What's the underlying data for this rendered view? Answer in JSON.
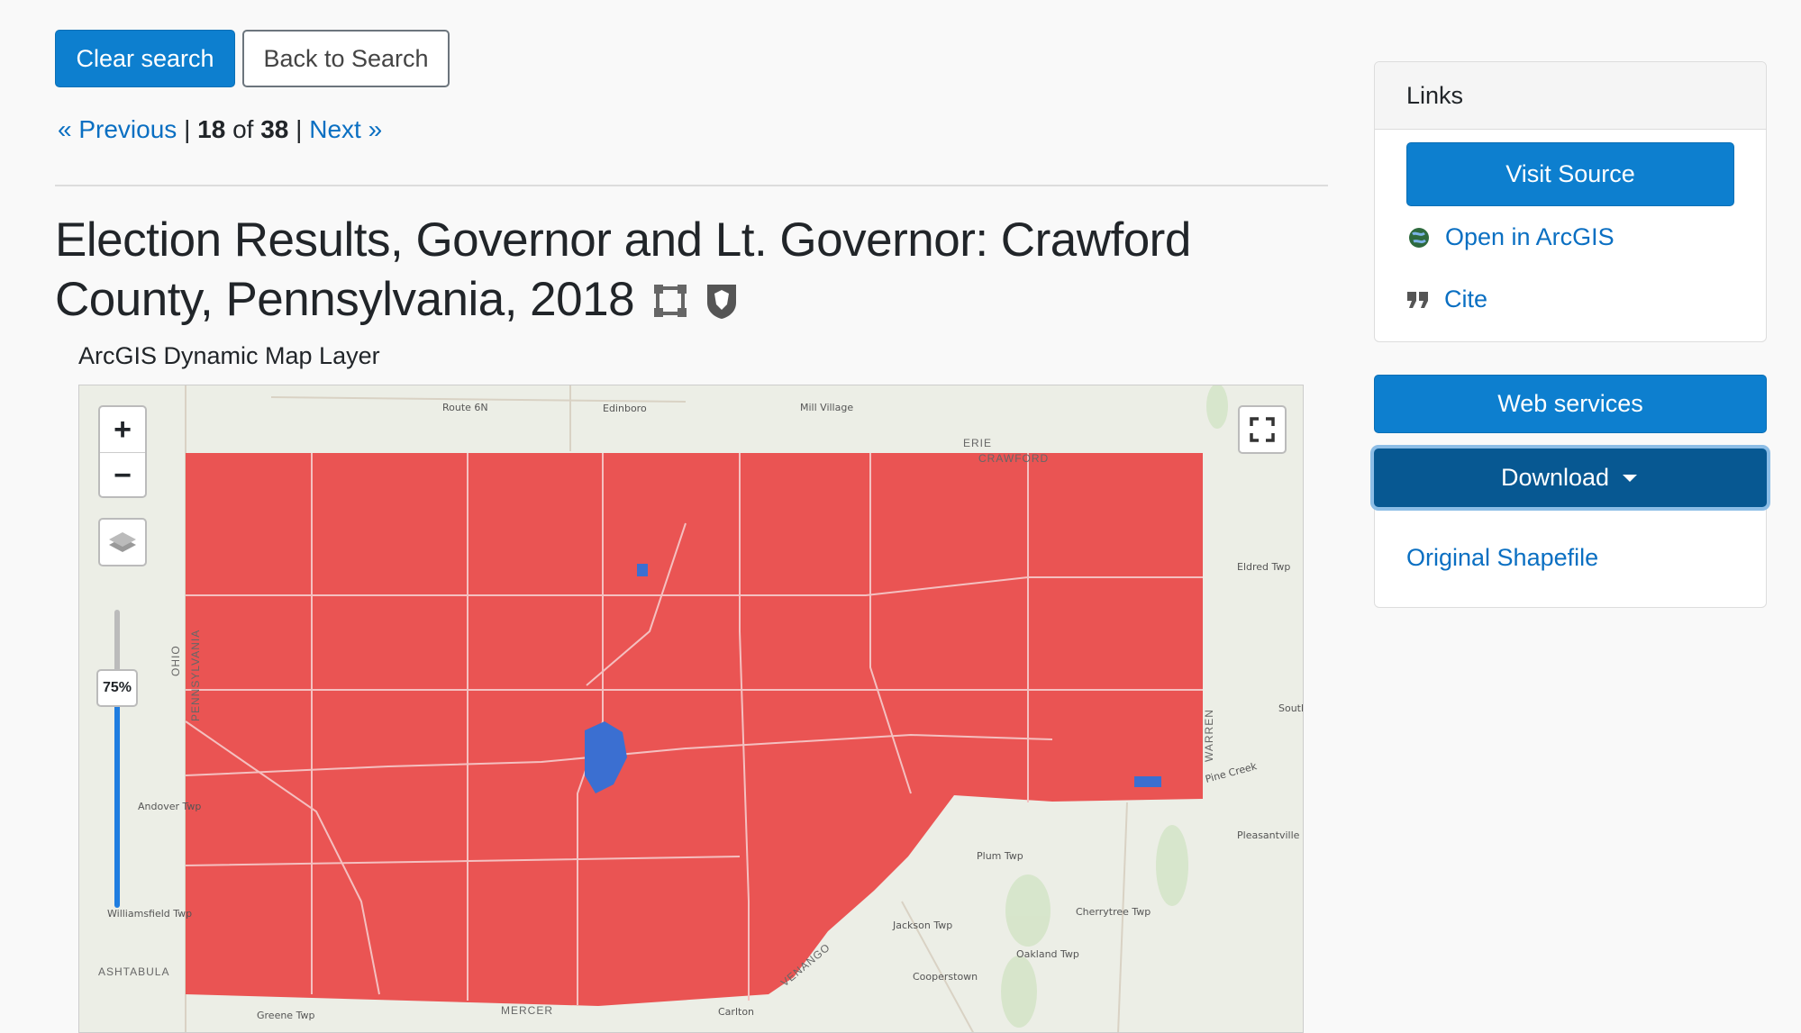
{
  "actions": {
    "clear": "Clear search",
    "back": "Back to Search"
  },
  "pagination": {
    "previous": "« Previous",
    "separator": "|",
    "current": "18",
    "of": "of",
    "total": "38",
    "next": "Next »"
  },
  "title": "Election Results, Governor and Lt. Governor: Crawford County, Pennsylvania, 2018",
  "layer_type": "ArcGIS Dynamic Map Layer",
  "map": {
    "opacity_label": "75%",
    "zoom_in": "+",
    "zoom_out": "−",
    "labels": [
      "Route 6N",
      "Edinboro",
      "Mill Village",
      "ERIE",
      "CRAWFORD",
      "Eldred Twp",
      "Pleasantville",
      "Plum Twp",
      "Jackson Twp",
      "Oakland Twp",
      "Cherrytree Twp",
      "Cooperstown",
      "ASHTABULA",
      "MERCER",
      "Greene Twp",
      "Carlton",
      "VENANGO",
      "WARREN",
      "PENNSYLVANIA",
      "OHIO",
      "Andover Twp",
      "Williamsfield Twp",
      "Pine Creek",
      "South"
    ]
  },
  "sidebar": {
    "links_header": "Links",
    "visit_source": "Visit Source",
    "open_arcgis": "Open in ArcGIS",
    "cite": "Cite",
    "web_services": "Web services",
    "download": "Download",
    "original_shapefile": "Original Shapefile"
  }
}
